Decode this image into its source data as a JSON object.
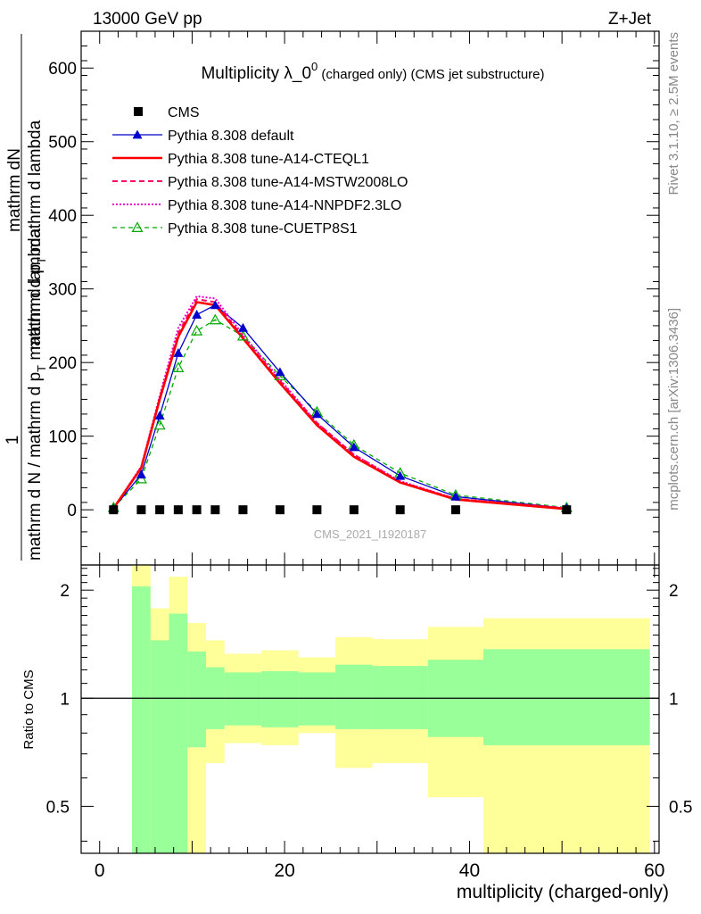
{
  "header": {
    "left": "13000 GeV pp",
    "right": "Z+Jet",
    "title_main": "Multiplicity λ_0",
    "title_sup": "0",
    "title_tail": " (charged only) (CMS jet substructure)"
  },
  "side_labels": {
    "rivet": "Rivet 3.1.10, ≥ 2.5M events",
    "mcplots": "mcplots.cern.ch [arXiv:1306.3436]"
  },
  "watermark": "CMS_2021_I1920187",
  "ylabel_main": {
    "one": "1",
    "num1": "mathrm dN",
    "num2": "mathrm d p",
    "num2_sub": "T",
    "num2_tail": " mathrm d lambda",
    "den1": "mathrm d N / mathrm d p",
    "den1_sub": "T",
    "den1_tail": " mathrm d lambda"
  },
  "ylabel_ratio": "Ratio to CMS",
  "xlabel": "multiplicity (charged-only)",
  "colors": {
    "cms": "#000000",
    "default": "#0000cc",
    "cteql1": "#ff0000",
    "mstw": "#ff0066",
    "nnpdf": "#ee00cc",
    "cuetp8s1": "#00aa00",
    "band_inner": "#99ff99",
    "band_outer": "#ffff99"
  },
  "chart_data": [
    {
      "type": "line",
      "panel": "main",
      "xlim": [
        -2,
        60.5
      ],
      "ylim": [
        -75,
        650
      ],
      "yticks": [
        0,
        100,
        200,
        300,
        400,
        500,
        600
      ],
      "ytick_labels": [
        "0",
        "100",
        "200",
        "300",
        "400",
        "500",
        "600"
      ],
      "x": [
        1.5,
        4.5,
        6.5,
        8.5,
        10.5,
        12.5,
        15.5,
        19.5,
        23.5,
        27.5,
        32.5,
        38.5,
        50.5
      ],
      "series": [
        {
          "name": "CMS",
          "key": "cms",
          "marker": "square",
          "values": [
            0,
            0,
            0,
            0,
            0,
            0,
            0,
            0,
            0,
            0,
            0,
            0,
            0
          ]
        },
        {
          "name": "Pythia 8.308 default",
          "key": "default",
          "marker": "triangle",
          "values": [
            2,
            48,
            128,
            213,
            265,
            278,
            247,
            187,
            130,
            85,
            46,
            18,
            2
          ]
        },
        {
          "name": "Pythia 8.308 tune-A14-CTEQL1",
          "key": "cteql1",
          "values": [
            2,
            57,
            150,
            235,
            282,
            278,
            233,
            172,
            115,
            72,
            37,
            14,
            1
          ]
        },
        {
          "name": "Pythia 8.308 tune-A14-MSTW2008LO",
          "key": "mstw",
          "values": [
            2,
            58,
            152,
            240,
            286,
            282,
            235,
            175,
            118,
            75,
            38,
            15,
            2
          ]
        },
        {
          "name": "Pythia 8.308 tune-A14-NNPDF2.3LO",
          "key": "nnpdf",
          "values": [
            2,
            59,
            155,
            247,
            290,
            287,
            238,
            177,
            118,
            75,
            39,
            15,
            2
          ]
        },
        {
          "name": "Pythia 8.308 tune-CUETP8S1",
          "key": "cuetp8s1",
          "marker": "open-triangle",
          "values": [
            3,
            42,
            115,
            193,
            243,
            258,
            236,
            182,
            133,
            88,
            50,
            20,
            3
          ]
        }
      ]
    },
    {
      "type": "area",
      "panel": "ratio",
      "xlim": [
        -2,
        60.5
      ],
      "ylim": [
        0.37,
        2.35
      ],
      "scale": "log",
      "yticks": [
        0.5,
        1,
        2
      ],
      "ytick_labels": [
        "0.5",
        "1",
        "2"
      ],
      "xticks": [
        0,
        20,
        40,
        60
      ],
      "xtick_labels": [
        "0",
        "20",
        "40",
        "60"
      ],
      "reference": 1,
      "bins": [
        {
          "lo": 3.5,
          "hi": 5.5,
          "inner": [
            0.3,
            2.05
          ],
          "outer": [
            0.3,
            2.4
          ]
        },
        {
          "lo": 5.5,
          "hi": 7.5,
          "inner": [
            0.3,
            1.45
          ],
          "outer": [
            0.68,
            1.78
          ]
        },
        {
          "lo": 7.5,
          "hi": 9.5,
          "inner": [
            0.3,
            1.72
          ],
          "outer": [
            0.3,
            2.18
          ]
        },
        {
          "lo": 9.5,
          "hi": 11.5,
          "inner": [
            0.73,
            1.35
          ],
          "outer": [
            0.37,
            1.62
          ]
        },
        {
          "lo": 11.5,
          "hi": 13.5,
          "inner": [
            0.82,
            1.22
          ],
          "outer": [
            0.66,
            1.45
          ]
        },
        {
          "lo": 13.5,
          "hi": 17.5,
          "inner": [
            0.84,
            1.18
          ],
          "outer": [
            0.75,
            1.33
          ]
        },
        {
          "lo": 17.5,
          "hi": 21.5,
          "inner": [
            0.83,
            1.19
          ],
          "outer": [
            0.74,
            1.36
          ]
        },
        {
          "lo": 21.5,
          "hi": 25.5,
          "inner": [
            0.84,
            1.18
          ],
          "outer": [
            0.8,
            1.3
          ]
        },
        {
          "lo": 25.5,
          "hi": 29.5,
          "inner": [
            0.82,
            1.24
          ],
          "outer": [
            0.64,
            1.48
          ]
        },
        {
          "lo": 29.5,
          "hi": 35.5,
          "inner": [
            0.82,
            1.23
          ],
          "outer": [
            0.66,
            1.46
          ]
        },
        {
          "lo": 35.5,
          "hi": 41.5,
          "inner": [
            0.78,
            1.28
          ],
          "outer": [
            0.53,
            1.58
          ]
        },
        {
          "lo": 41.5,
          "hi": 59.5,
          "inner": [
            0.74,
            1.37
          ],
          "outer": [
            0.3,
            1.67
          ]
        }
      ]
    }
  ]
}
